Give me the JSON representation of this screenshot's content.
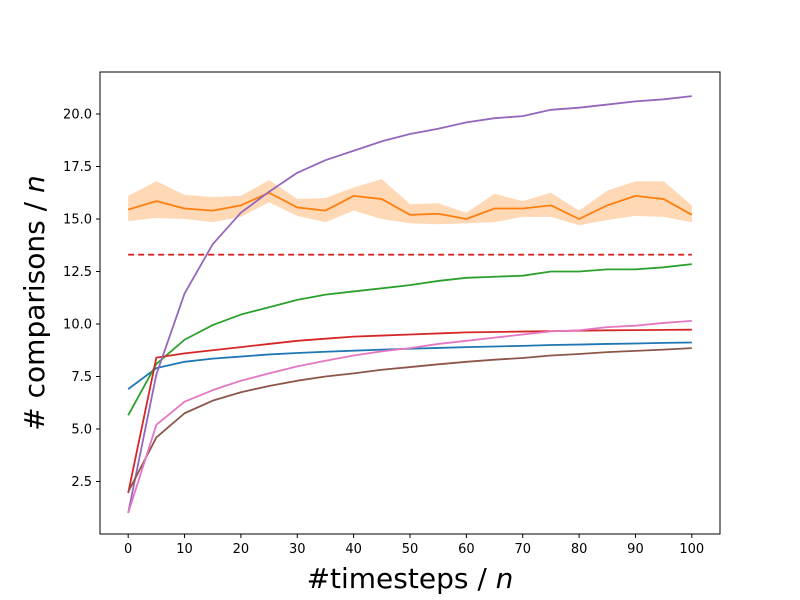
{
  "chart_data": {
    "type": "line",
    "xlabel_main": "#timesteps / ",
    "xlabel_var": "n",
    "ylabel_main": "# comparisons / ",
    "ylabel_var": "n",
    "xlim": [
      -5,
      105
    ],
    "ylim": [
      0.0,
      22.0
    ],
    "xticks": [
      0,
      10,
      20,
      30,
      40,
      50,
      60,
      70,
      80,
      90,
      100
    ],
    "xtick_labels": [
      "0",
      "10",
      "20",
      "30",
      "40",
      "50",
      "60",
      "70",
      "80",
      "90",
      "100"
    ],
    "yticks": [
      2.5,
      5.0,
      7.5,
      10.0,
      12.5,
      15.0,
      17.5,
      20.0
    ],
    "ytick_labels": [
      "2.5",
      "5.0",
      "7.5",
      "10.0",
      "12.5",
      "15.0",
      "17.5",
      "20.0"
    ],
    "grid": false,
    "x": [
      0,
      5,
      10,
      15,
      20,
      25,
      30,
      35,
      40,
      45,
      50,
      55,
      60,
      65,
      70,
      75,
      80,
      85,
      90,
      95,
      100
    ],
    "series": [
      {
        "color": "#1f77b4",
        "values": [
          6.9,
          7.9,
          8.2,
          8.35,
          8.45,
          8.55,
          8.62,
          8.68,
          8.73,
          8.78,
          8.82,
          8.86,
          8.9,
          8.93,
          8.96,
          9.0,
          9.02,
          9.05,
          9.07,
          9.1,
          9.12
        ]
      },
      {
        "color": "#ff7f0e",
        "values": [
          15.45,
          15.85,
          15.5,
          15.4,
          15.65,
          16.25,
          15.55,
          15.4,
          16.1,
          15.95,
          15.2,
          15.25,
          15.0,
          15.5,
          15.5,
          15.65,
          15.0,
          15.65,
          16.1,
          15.95,
          15.2
        ],
        "band_lower": [
          14.9,
          15.05,
          15.0,
          14.85,
          15.1,
          15.8,
          15.15,
          14.85,
          15.4,
          15.0,
          14.8,
          14.75,
          14.8,
          14.85,
          15.1,
          15.1,
          14.7,
          14.95,
          15.15,
          15.1,
          14.85
        ],
        "band_upper": [
          16.1,
          16.8,
          16.15,
          16.05,
          16.1,
          16.85,
          15.95,
          16.0,
          16.5,
          16.9,
          15.7,
          15.75,
          15.3,
          16.2,
          15.85,
          16.25,
          15.4,
          16.35,
          16.8,
          16.8,
          15.65
        ]
      },
      {
        "color": "#2ca02c",
        "values": [
          5.65,
          8.1,
          9.25,
          9.95,
          10.45,
          10.8,
          11.15,
          11.4,
          11.55,
          11.7,
          11.85,
          12.05,
          12.2,
          12.25,
          12.3,
          12.5,
          12.5,
          12.6,
          12.6,
          12.7,
          12.85
        ]
      },
      {
        "color": "#d62728",
        "values": [
          1.95,
          8.4,
          8.6,
          8.75,
          8.9,
          9.05,
          9.2,
          9.3,
          9.4,
          9.45,
          9.5,
          9.55,
          9.6,
          9.62,
          9.64,
          9.66,
          9.68,
          9.7,
          9.71,
          9.72,
          9.73
        ]
      },
      {
        "color": "#9467bd",
        "values": [
          1.0,
          7.6,
          11.45,
          13.8,
          15.3,
          16.3,
          17.2,
          17.8,
          18.25,
          18.7,
          19.05,
          19.3,
          19.6,
          19.8,
          19.9,
          20.2,
          20.3,
          20.45,
          20.6,
          20.7,
          20.85
        ]
      },
      {
        "color": "#8c564b",
        "values": [
          2.0,
          4.6,
          5.75,
          6.35,
          6.75,
          7.05,
          7.3,
          7.5,
          7.65,
          7.82,
          7.95,
          8.08,
          8.2,
          8.3,
          8.38,
          8.5,
          8.57,
          8.66,
          8.72,
          8.78,
          8.85
        ]
      },
      {
        "color": "#e377c2",
        "values": [
          1.0,
          5.2,
          6.3,
          6.85,
          7.3,
          7.65,
          7.98,
          8.25,
          8.5,
          8.7,
          8.85,
          9.05,
          9.2,
          9.35,
          9.5,
          9.65,
          9.7,
          9.85,
          9.92,
          10.05,
          10.15
        ]
      }
    ],
    "reference_line": {
      "color": "#d62728",
      "style": "dashed",
      "y": 13.3,
      "x_start": 0,
      "x_end": 100
    }
  }
}
